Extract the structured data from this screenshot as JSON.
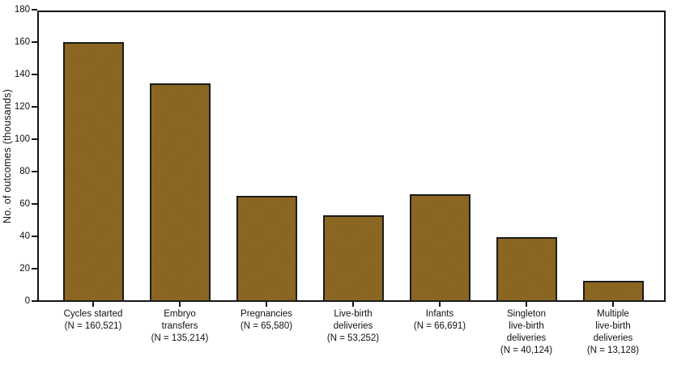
{
  "chart_data": {
    "type": "bar",
    "title": "",
    "ylabel": "No. of outcomes (thousands)",
    "xlabel": "",
    "ylim": [
      0,
      180
    ],
    "ytick_step": 20,
    "ytick_labels": [
      "0",
      "20",
      "40",
      "60",
      "80",
      "100",
      "120",
      "140",
      "160",
      "180"
    ],
    "grid": false,
    "legend_position": "none",
    "background_color": "#ffffff",
    "axis_color": "#151515",
    "text_color": "#111111",
    "bar_color": "#8a6420",
    "bar_border_color": "#1c1c1c",
    "categories": [
      {
        "lines": [
          "Cycles started",
          "(N = 160,521)"
        ],
        "n": "160,521"
      },
      {
        "lines": [
          "Embryo",
          "transfers",
          "(N = 135,214)"
        ],
        "n": "135,214"
      },
      {
        "lines": [
          "Pregnancies",
          "(N = 65,580)"
        ],
        "n": "65,580"
      },
      {
        "lines": [
          "Live-birth",
          "deliveries",
          "(N = 53,252)"
        ],
        "n": "53,252"
      },
      {
        "lines": [
          "Infants",
          "(N = 66,691)"
        ],
        "n": "66,691"
      },
      {
        "lines": [
          "Singleton",
          "live-birth",
          "deliveries",
          "(N = 40,124)"
        ],
        "n": "40,124"
      },
      {
        "lines": [
          "Multiple",
          "live-birth",
          "deliveries",
          "(N = 13,128)"
        ],
        "n": "13,128"
      }
    ],
    "values_thousands": [
      160.521,
      135.214,
      65.58,
      53.252,
      66.691,
      40.124,
      13.128
    ]
  }
}
